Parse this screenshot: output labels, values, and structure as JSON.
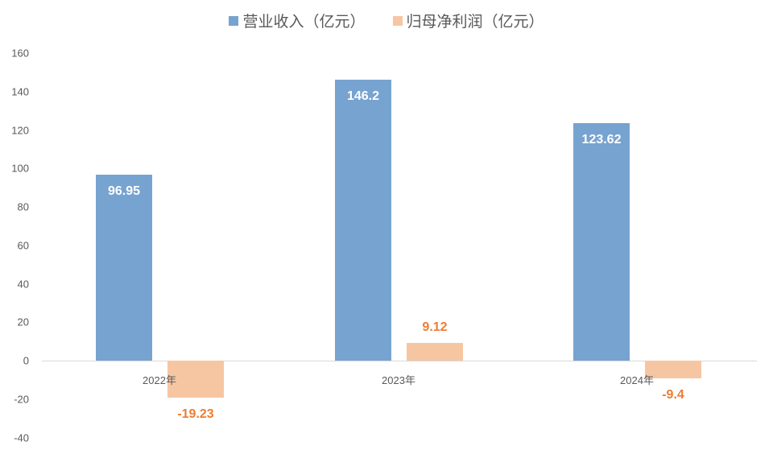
{
  "chart_data": {
    "type": "bar",
    "title": "",
    "categories": [
      "2022年",
      "2023年",
      "2024年"
    ],
    "series": [
      {
        "name": "营业收入（亿元）",
        "values": [
          96.95,
          146.2,
          123.62
        ],
        "color": "#77a3d0",
        "label_color": "#ffffff"
      },
      {
        "name": "归母净利润（亿元）",
        "values": [
          -19.23,
          9.12,
          -9.4
        ],
        "color": "#f6c6a3",
        "label_color": "#ed7d31"
      }
    ],
    "data_labels": {
      "revenue": [
        "96.95",
        "146.2",
        "123.62"
      ],
      "profit": [
        "-19.23",
        "9.12",
        "-9.4"
      ]
    },
    "xlabel": "",
    "ylabel": "",
    "ylim": [
      -40,
      160
    ],
    "yticks": [
      "160",
      "140",
      "120",
      "100",
      "80",
      "60",
      "40",
      "20",
      "0",
      "-20",
      "-40"
    ],
    "grid": false,
    "legend_position": "top"
  },
  "legend": {
    "revenue": "营业收入（亿元）",
    "profit": "归母净利润（亿元）"
  }
}
